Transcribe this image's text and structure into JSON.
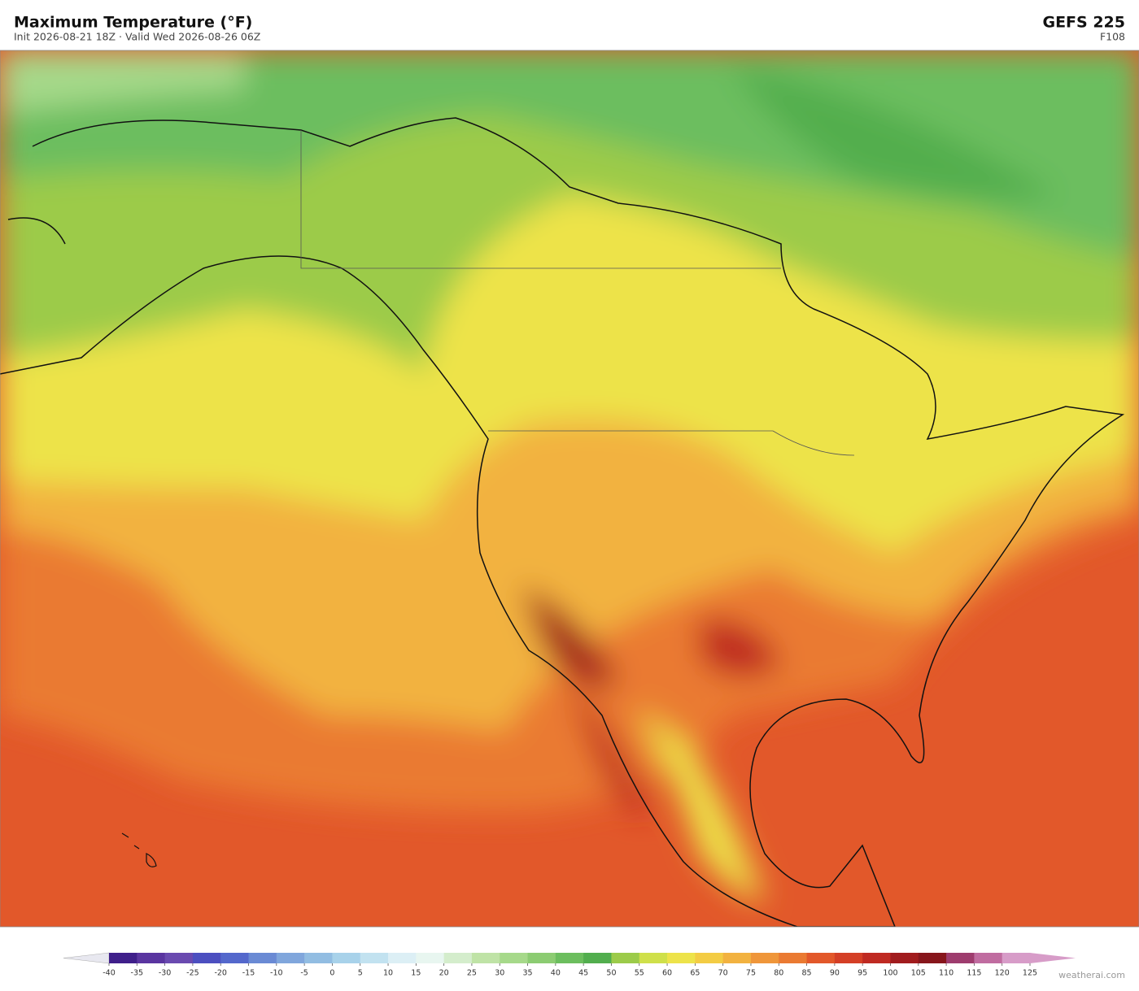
{
  "header": {
    "title": "Maximum Temperature  (°F)",
    "subtitle": "Init 2026-08-21 18Z   ·   Valid Wed 2026-08-26 06Z",
    "model": "GEFS  225",
    "forecast_hour": "F108"
  },
  "colorbar": {
    "ticks": [
      -40,
      -35,
      -30,
      -25,
      -20,
      -15,
      -10,
      -5,
      0,
      5,
      10,
      15,
      20,
      25,
      30,
      35,
      40,
      45,
      50,
      55,
      60,
      65,
      70,
      75,
      80,
      85,
      90,
      95,
      100,
      105,
      110,
      115,
      120,
      125
    ],
    "colors": [
      "#3f1f8a",
      "#5a35a0",
      "#6a4ab0",
      "#4c4fc0",
      "#5468cc",
      "#6a8ad4",
      "#80a6dc",
      "#92bde2",
      "#a8d2ea",
      "#c2e2f0",
      "#dceff5",
      "#e8f6f0",
      "#d4edcc",
      "#bfe3a6",
      "#a6d98a",
      "#8ccc72",
      "#6cbe5e",
      "#52ae4e",
      "#9ccb4a",
      "#cfe04a",
      "#ede34a",
      "#f3cc44",
      "#f2b240",
      "#ef963a",
      "#ea7a32",
      "#e2582a",
      "#d43f26",
      "#bf2a22",
      "#a11c1e",
      "#87161c",
      "#9e3c6e",
      "#c06ca0",
      "#d79cc8"
    ],
    "under_color": "#e8e8f0",
    "over_color": "#d79cc8"
  },
  "credit": "weatherai.com"
}
